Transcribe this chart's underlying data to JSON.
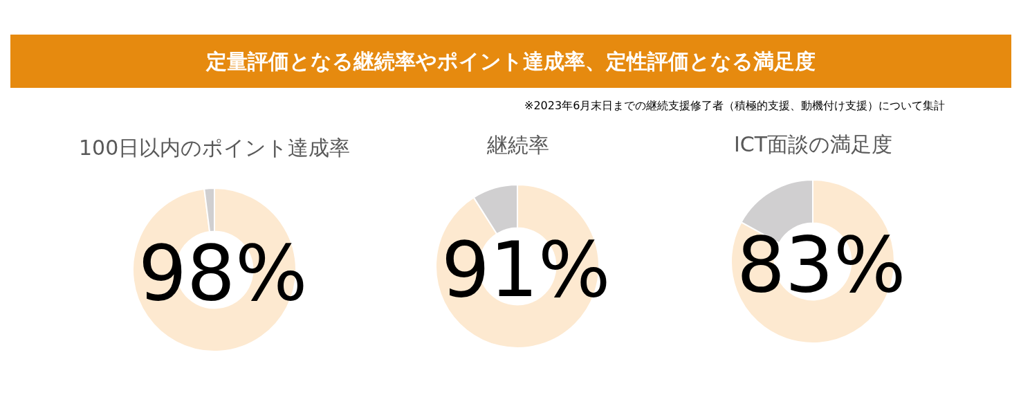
{
  "chart_data": [
    {
      "type": "other",
      "title": "定量評価となる継続率やポイント達成率、定性評価となる満足度",
      "annotations": [
        "※2023年6月末日までの継続支援修了者（積極的支援、動機付け支援）について集計"
      ]
    },
    {
      "type": "donut",
      "title": "100日以内のポイント達成率",
      "categories": [
        null,
        null
      ],
      "values": [
        98,
        2
      ],
      "colors": [
        "#fde9d0",
        "#d0cfd0"
      ],
      "value_labels": [
        "98%",
        null
      ]
    },
    {
      "type": "donut",
      "title": "継続率",
      "categories": [
        null,
        null
      ],
      "values": [
        91,
        9
      ],
      "colors": [
        "#fde9d0",
        "#d0cfd0"
      ],
      "value_labels": [
        "91%",
        null
      ]
    },
    {
      "type": "donut",
      "title": "ICT面談の満足度",
      "categories": [
        null,
        null
      ],
      "values": [
        83,
        17
      ],
      "colors": [
        "#fde9d0",
        "#d0cfd0"
      ],
      "value_labels": [
        "83%",
        null
      ]
    }
  ]
}
